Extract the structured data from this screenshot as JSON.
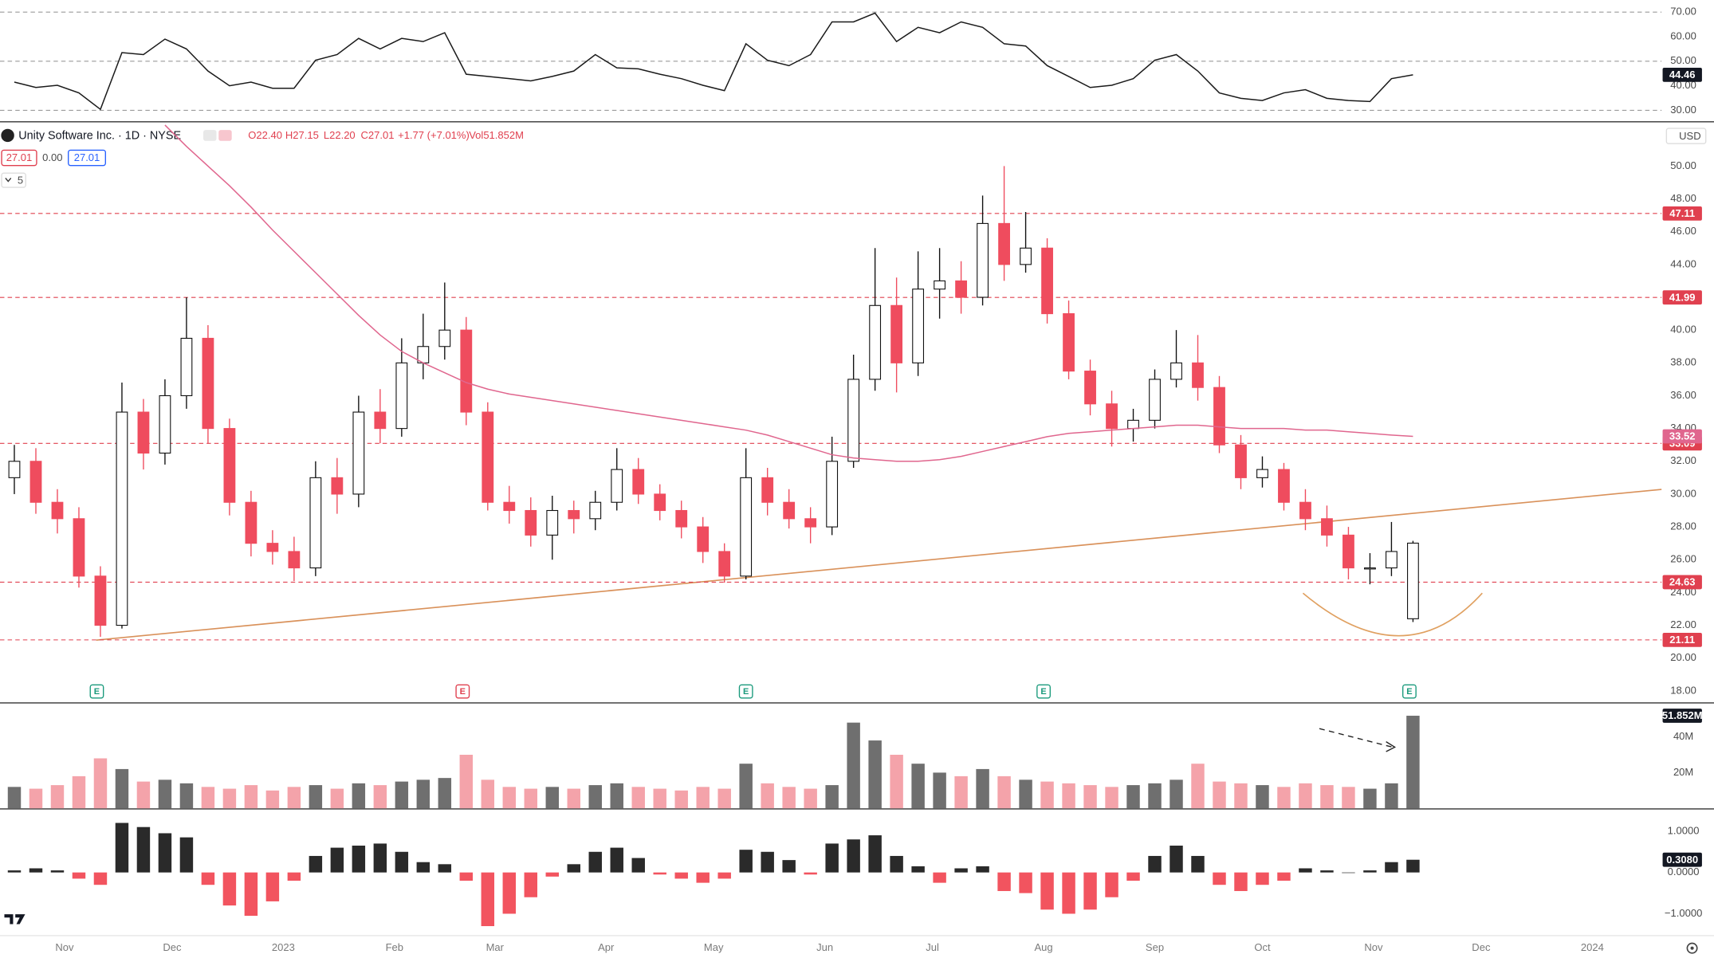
{
  "chart_data": [
    {
      "type": "line",
      "ylim": [
        26,
        72.7
      ],
      "yticks": [
        {
          "value": 30,
          "label": "30.00"
        },
        {
          "value": 40,
          "label": "40.00"
        },
        {
          "value": 50,
          "label": "50.00"
        },
        {
          "value": 60,
          "label": "60.00"
        },
        {
          "value": 70,
          "label": "70.00"
        }
      ],
      "levels": [
        30,
        50,
        70
      ],
      "level_color": "#9a9a9a",
      "series": [
        {
          "color": "#1a1a1a",
          "last_value_box": true,
          "values": [
            41.5,
            39.3,
            40.2,
            37.1,
            30.4,
            53.5,
            52.7,
            59,
            55,
            46,
            40,
            41.5,
            39,
            39,
            50.4,
            52.7,
            59.3,
            55,
            59.3,
            58,
            61.6,
            44.7,
            43.8,
            42.9,
            42,
            43.8,
            46,
            52.7,
            47.3,
            46.9,
            44.7,
            42.9,
            40.2,
            38,
            57.1,
            50.4,
            48.2,
            52.7,
            66,
            66,
            69.6,
            58,
            63.8,
            61.6,
            66,
            63.8,
            57.1,
            56.2,
            48.2,
            43.8,
            39.3,
            40.2,
            42.9,
            50.4,
            52.7,
            46,
            37.1,
            34.9,
            34,
            37.1,
            38.4,
            34.9,
            34,
            33.6,
            42.9,
            44.46
          ]
        }
      ]
    },
    {
      "type": "candlestick",
      "title": "Unity Software Inc. · 1D · NYSE",
      "ohlc": [
        "O22.40",
        "H27.15",
        "L22.20",
        "C27.01",
        "+1.77 (+7.01%)",
        "Vol51.852M"
      ],
      "toolbar": [
        "27.01",
        "0.00",
        "27.01"
      ],
      "interval_badge": "5",
      "currency": "USD",
      "xlim": [
        0,
        463
      ],
      "xticks": [
        {
          "value": 18,
          "label": "Nov"
        },
        {
          "value": 48,
          "label": "Dec"
        },
        {
          "value": 79,
          "label": "2023"
        },
        {
          "value": 110,
          "label": "Feb"
        },
        {
          "value": 138,
          "label": "Mar"
        },
        {
          "value": 169,
          "label": "Apr"
        },
        {
          "value": 199,
          "label": "May"
        },
        {
          "value": 230,
          "label": "Jun"
        },
        {
          "value": 260,
          "label": "Jul"
        },
        {
          "value": 291,
          "label": "Aug"
        },
        {
          "value": 322,
          "label": "Sep"
        },
        {
          "value": 352,
          "label": "Oct"
        },
        {
          "value": 383,
          "label": "Nov"
        },
        {
          "value": 413,
          "label": "Dec"
        },
        {
          "value": 444,
          "label": "2024"
        }
      ],
      "ylim": [
        17.3,
        52.6
      ],
      "yticks": [
        {
          "value": 18,
          "label": "18.00"
        },
        {
          "value": 20,
          "label": "20.00"
        },
        {
          "value": 22,
          "label": "22.00"
        },
        {
          "value": 24,
          "label": "24.00"
        },
        {
          "value": 26,
          "label": "26.00"
        },
        {
          "value": 28,
          "label": "28.00"
        },
        {
          "value": 30,
          "label": "30.00"
        },
        {
          "value": 32,
          "label": "32.00"
        },
        {
          "value": 34,
          "label": "34.00"
        },
        {
          "value": 36,
          "label": "36.00"
        },
        {
          "value": 38,
          "label": "38.00"
        },
        {
          "value": 40,
          "label": "40.00"
        },
        {
          "value": 42,
          "label": "42.00"
        },
        {
          "value": 44,
          "label": "44.00"
        },
        {
          "value": 46,
          "label": "46.00"
        },
        {
          "value": 48,
          "label": "48.00"
        },
        {
          "value": 50,
          "label": "50.00"
        }
      ],
      "levels": [
        47.11,
        41.99,
        33.09,
        24.63,
        21.11
      ],
      "level_color": "#e0404f",
      "up_color": "#ffffff",
      "down_color": "#ef4c5e",
      "wick_color": "#111111",
      "x": [
        4,
        10,
        16,
        22,
        28,
        34,
        40,
        46,
        52,
        58,
        64,
        70,
        76,
        82,
        88,
        94,
        100,
        106,
        112,
        118,
        124,
        130,
        136,
        142,
        148,
        154,
        160,
        166,
        172,
        178,
        184,
        190,
        196,
        202,
        208,
        214,
        220,
        226,
        232,
        238,
        244,
        250,
        256,
        262,
        268,
        274,
        280,
        286,
        292,
        298,
        304,
        310,
        316,
        322,
        328,
        334,
        340,
        346,
        352,
        358,
        364,
        370,
        376,
        382,
        388,
        394
      ],
      "open": [
        31,
        32,
        29.5,
        28.5,
        25,
        22,
        35,
        32.5,
        36,
        39.5,
        34,
        29.5,
        27,
        26.5,
        25.5,
        31,
        30,
        35,
        34,
        38,
        39,
        40,
        35,
        29.5,
        29,
        27.5,
        29,
        28.5,
        29.5,
        31.5,
        30,
        29,
        28,
        26.5,
        25,
        31,
        29.5,
        28.5,
        28,
        32,
        37,
        41.5,
        38,
        42.5,
        43,
        42,
        46.5,
        44,
        45,
        41,
        37.5,
        35.5,
        34,
        34.5,
        37,
        38,
        36.5,
        33,
        31,
        31.5,
        29.5,
        28.5,
        27.5,
        25.5,
        25.5,
        22.4
      ],
      "high": [
        33,
        32.8,
        30.3,
        29.2,
        25.6,
        36.8,
        35.8,
        37,
        42,
        40.3,
        34.6,
        30.2,
        27.8,
        27.4,
        32,
        32.2,
        36,
        36.4,
        39.5,
        41,
        42.9,
        40.8,
        35.6,
        30.5,
        29.8,
        29.9,
        29.6,
        30.2,
        32.8,
        32.2,
        30.6,
        29.6,
        28.6,
        27,
        32.8,
        31.6,
        30.3,
        29.2,
        33.5,
        38.5,
        45,
        43.2,
        44.8,
        45,
        44.2,
        48.2,
        50,
        47.2,
        45.6,
        41.8,
        38.2,
        36.3,
        35.2,
        37.6,
        40,
        39.7,
        37.2,
        33.6,
        32.3,
        31.9,
        30.3,
        29.3,
        28,
        26.4,
        28.3,
        27.15
      ],
      "low": [
        30,
        28.8,
        27.6,
        24.3,
        21.3,
        21.8,
        31.5,
        31.8,
        35.2,
        33.1,
        28.7,
        26.2,
        25.7,
        24.7,
        25,
        28.8,
        29.2,
        33.1,
        33.5,
        37,
        38.2,
        34.2,
        29,
        28.2,
        26.8,
        26,
        27.6,
        27.8,
        29,
        29.4,
        28.4,
        27.3,
        25.8,
        24.6,
        24.8,
        28.7,
        27.9,
        27,
        27.5,
        31.6,
        36.3,
        36.2,
        37.2,
        40.7,
        41,
        41.5,
        43,
        43.5,
        40.4,
        37,
        34.8,
        32.9,
        33.2,
        34,
        36.5,
        35.7,
        32.5,
        30.3,
        30.4,
        29,
        27.8,
        26.8,
        24.8,
        24.5,
        25,
        22.2
      ],
      "close": [
        32,
        29.5,
        28.5,
        25,
        22,
        35,
        32.5,
        36,
        39.5,
        34,
        29.5,
        27,
        26.5,
        25.5,
        31,
        30,
        35,
        34,
        38,
        39,
        40,
        35,
        29.5,
        29,
        27.5,
        29,
        28.5,
        29.5,
        31.5,
        30,
        29,
        28,
        26.5,
        25,
        31,
        29.5,
        28.5,
        28,
        32,
        37,
        41.5,
        38,
        42.5,
        43,
        42,
        46.5,
        44,
        45,
        41,
        37.5,
        35.5,
        34,
        34.5,
        37,
        38,
        36.5,
        33,
        31,
        31.5,
        29.5,
        28.5,
        27.5,
        25.5,
        25.5,
        26.5,
        27.01
      ],
      "series": [
        {
          "color": "#e0668e",
          "last_value_box": true,
          "values": [
            null,
            null,
            null,
            null,
            null,
            null,
            null,
            52.5,
            51.2,
            50,
            48.8,
            47.5,
            46.1,
            44.8,
            43.5,
            42.2,
            40.9,
            39.7,
            38.7,
            38,
            37.4,
            36.8,
            36.4,
            36.1,
            35.9,
            35.7,
            35.5,
            35.3,
            35.1,
            34.9,
            34.7,
            34.5,
            34.3,
            34.1,
            33.9,
            33.6,
            33.2,
            32.8,
            32.4,
            32.2,
            32.1,
            32,
            32,
            32.1,
            32.3,
            32.6,
            32.9,
            33.2,
            33.5,
            33.7,
            33.8,
            33.9,
            34,
            34.1,
            34.2,
            34.2,
            34.1,
            34,
            34,
            34,
            33.9,
            33.9,
            33.8,
            33.7,
            33.6,
            33.52
          ]
        }
      ],
      "earnings": {
        "label": "E",
        "x": [
          27,
          129,
          208,
          291,
          393
        ],
        "colors": [
          "#1a9a7c",
          "#e0404f",
          "#1a9a7c",
          "#1a9a7c",
          "#1a9a7c"
        ]
      }
    },
    {
      "type": "bar",
      "ylim": [
        0,
        58.1
      ],
      "yticks": [
        {
          "value": 20,
          "label": "20M"
        },
        {
          "value": 40,
          "label": "40M"
        }
      ],
      "up_color": "#6f6f6f",
      "down_color": "#f4a3aa",
      "values": [
        12,
        11,
        13,
        18,
        28,
        22,
        15,
        16,
        14,
        12,
        11,
        13,
        10,
        12,
        13,
        11,
        14,
        13,
        15,
        16,
        17,
        30,
        16,
        12,
        11,
        12,
        11,
        13,
        14,
        12,
        11,
        10,
        12,
        11,
        25,
        14,
        12,
        11,
        13,
        48,
        38,
        30,
        25,
        20,
        18,
        22,
        18,
        16,
        15,
        14,
        13,
        12,
        13,
        14,
        16,
        25,
        15,
        14,
        13,
        12,
        14,
        13,
        12,
        11,
        14,
        51.852
      ],
      "value_labels": [
        null,
        null,
        null,
        null,
        null,
        null,
        null,
        null,
        null,
        null,
        null,
        null,
        null,
        null,
        null,
        null,
        null,
        null,
        null,
        null,
        null,
        null,
        null,
        null,
        null,
        null,
        null,
        null,
        null,
        null,
        null,
        null,
        null,
        null,
        null,
        null,
        null,
        null,
        null,
        null,
        null,
        null,
        null,
        null,
        null,
        null,
        null,
        null,
        null,
        null,
        null,
        null,
        null,
        null,
        null,
        null,
        null,
        null,
        null,
        null,
        null,
        null,
        null,
        null,
        null,
        "51.852M"
      ]
    },
    {
      "type": "bar",
      "ylim": [
        -1.49,
        1.5
      ],
      "yticks": [
        {
          "value": 1,
          "label": "1.0000"
        },
        {
          "value": 0,
          "label": "0.0000"
        },
        {
          "value": -1,
          "label": "−1.0000"
        }
      ],
      "positive_color": "#2a2a2a",
      "negative_color": "#f2545f",
      "values": [
        0.05,
        0.1,
        0.05,
        -0.15,
        -0.3,
        1.2,
        1.1,
        0.95,
        0.85,
        -0.3,
        -0.8,
        -1.05,
        -0.7,
        -0.2,
        0.4,
        0.6,
        0.65,
        0.7,
        0.5,
        0.25,
        0.2,
        -0.2,
        -1.3,
        -1,
        -0.6,
        -0.1,
        0.2,
        0.5,
        0.6,
        0.35,
        -0.05,
        -0.15,
        -0.25,
        -0.15,
        0.55,
        0.5,
        0.3,
        -0.05,
        0.7,
        0.8,
        0.9,
        0.4,
        0.15,
        -0.25,
        0.1,
        0.15,
        -0.45,
        -0.5,
        -0.9,
        -1,
        -0.9,
        -0.6,
        -0.2,
        0.4,
        0.65,
        0.4,
        -0.3,
        -0.45,
        -0.3,
        -0.2,
        0.1,
        0.05,
        0,
        0.05,
        0.25,
        0.308
      ],
      "value_labels": [
        null,
        null,
        null,
        null,
        null,
        null,
        null,
        null,
        null,
        null,
        null,
        null,
        null,
        null,
        null,
        null,
        null,
        null,
        null,
        null,
        null,
        null,
        null,
        null,
        null,
        null,
        null,
        null,
        null,
        null,
        null,
        null,
        null,
        null,
        null,
        null,
        null,
        null,
        null,
        null,
        null,
        null,
        null,
        null,
        null,
        null,
        null,
        null,
        null,
        null,
        null,
        null,
        null,
        null,
        null,
        null,
        null,
        null,
        null,
        null,
        null,
        null,
        null,
        null,
        null,
        "0.3080"
      ]
    }
  ]
}
